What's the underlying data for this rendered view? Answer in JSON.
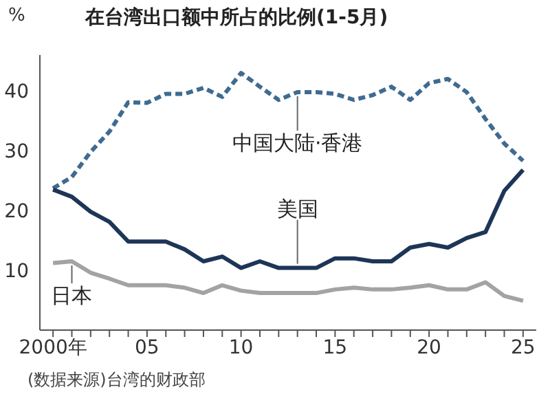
{
  "chart_data": {
    "type": "line",
    "title": "在台湾出口额中所占的比例(1-5月)",
    "ylabel": "%",
    "annotations": [
      "(数据来源)台湾的财政部"
    ],
    "x": [
      2000,
      2001,
      2002,
      2003,
      2004,
      2005,
      2006,
      2007,
      2008,
      2009,
      2010,
      2011,
      2012,
      2013,
      2014,
      2015,
      2016,
      2017,
      2018,
      2019,
      2020,
      2021,
      2022,
      2023,
      2024,
      2025
    ],
    "series": [
      {
        "name": "中国大陆·香港",
        "color": "#3f6b91",
        "line_style": "dashed",
        "values": [
          23.7,
          25.6,
          29.8,
          33.2,
          38.1,
          38,
          39.5,
          39.5,
          40.5,
          39,
          43,
          40.7,
          38.5,
          39.8,
          39.8,
          39.5,
          38.5,
          39.3,
          40.7,
          38.5,
          41.3,
          42,
          39.8,
          35.3,
          31.2,
          28.3
        ]
      },
      {
        "name": "美国",
        "color": "#1d3557",
        "line_style": "solid",
        "values": [
          23.5,
          22.3,
          19.8,
          18.1,
          14.8,
          14.8,
          14.8,
          13.5,
          11.5,
          12.3,
          10.4,
          11.5,
          10.4,
          10.4,
          10.4,
          12,
          12,
          11.5,
          11.5,
          13.8,
          14.4,
          13.8,
          15.4,
          16.4,
          23.3,
          26.8
        ]
      },
      {
        "name": "日本",
        "color": "#a3a3a3",
        "line_style": "solid",
        "values": [
          11.2,
          11.5,
          9.6,
          8.6,
          7.5,
          7.5,
          7.5,
          7.1,
          6.2,
          7.5,
          6.6,
          6.2,
          6.2,
          6.2,
          6.2,
          6.8,
          7.1,
          6.8,
          6.8,
          7.1,
          7.5,
          6.8,
          6.8,
          8,
          5.7,
          4.9
        ]
      }
    ],
    "xlim": [
      1999.3,
      2025.7
    ],
    "xticks": [
      {
        "value": 2000,
        "label": "2000年"
      },
      {
        "value": 2001,
        "label": null
      },
      {
        "value": 2002,
        "label": null
      },
      {
        "value": 2003,
        "label": null
      },
      {
        "value": 2004,
        "label": null
      },
      {
        "value": 2005,
        "label": "05"
      },
      {
        "value": 2006,
        "label": null
      },
      {
        "value": 2007,
        "label": null
      },
      {
        "value": 2008,
        "label": null
      },
      {
        "value": 2009,
        "label": null
      },
      {
        "value": 2010,
        "label": "10"
      },
      {
        "value": 2011,
        "label": null
      },
      {
        "value": 2012,
        "label": null
      },
      {
        "value": 2013,
        "label": null
      },
      {
        "value": 2014,
        "label": null
      },
      {
        "value": 2015,
        "label": "15"
      },
      {
        "value": 2016,
        "label": null
      },
      {
        "value": 2017,
        "label": null
      },
      {
        "value": 2018,
        "label": null
      },
      {
        "value": 2019,
        "label": null
      },
      {
        "value": 2020,
        "label": "20"
      },
      {
        "value": 2021,
        "label": null
      },
      {
        "value": 2022,
        "label": null
      },
      {
        "value": 2023,
        "label": null
      },
      {
        "value": 2024,
        "label": null
      },
      {
        "value": 2025,
        "label": "25"
      }
    ],
    "ylim": [
      0,
      46
    ],
    "yticks": [
      10,
      20,
      30,
      40
    ],
    "marker": "none"
  }
}
